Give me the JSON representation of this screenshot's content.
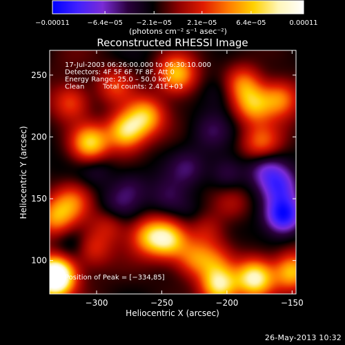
{
  "colors": {
    "background": "#000000",
    "text": "#ffffff"
  },
  "chart_data": {
    "type": "heatmap",
    "title": "Reconstructed RHESSI Image",
    "xlabel": "Heliocentric X (arcsec)",
    "ylabel": "Heliocentric Y (arcsec)",
    "xlim": [
      -336,
      -147
    ],
    "ylim": [
      73,
      270
    ],
    "xticks": [
      -300,
      -250,
      -200,
      -150
    ],
    "yticks": [
      100,
      150,
      200,
      250
    ],
    "xtick_labels": [
      "−300",
      "−250",
      "−200",
      "−150"
    ],
    "ytick_labels": [
      "100",
      "150",
      "200",
      "250"
    ],
    "colorbar": {
      "label": "(photons cm⁻² s⁻¹ asec⁻²)",
      "range": [
        -0.00011,
        0.00011
      ],
      "tick_values": [
        -0.00011,
        -6.4e-05,
        -2.1e-05,
        2.1e-05,
        6.4e-05,
        0.00011
      ],
      "tick_labels": [
        "−0.00011",
        "−6.4e−05",
        "−2.1e−05",
        "2.1e−05",
        "6.4e−05",
        "0.00011"
      ],
      "colormap": [
        "#0000ff",
        "#4020ff",
        "#7a2bd6",
        "#2b003d",
        "#000000",
        "#8c0000",
        "#e01b00",
        "#ff7a00",
        "#ffd100",
        "#fff6b8",
        "#ffffff"
      ]
    },
    "annotations": [
      "17-Jul-2003 06:26:00.000 to 06:30:10.000",
      "Detectors: 4F 5F 6F 7F 8F, Att 0",
      "Energy Range: 25.0 – 50.0 keV",
      "Clean",
      "Total counts: 2.41E+03",
      "Position of Peak = [−334,85]"
    ],
    "peak_position": [
      -334,
      85
    ],
    "hotspots": [
      {
        "x": -320,
        "y": 228,
        "value": 5e-05
      },
      {
        "x": -286,
        "y": 242,
        "value": 4.5e-05
      },
      {
        "x": -239,
        "y": 251,
        "value": 8e-05
      },
      {
        "x": -188,
        "y": 243,
        "value": 6e-05
      },
      {
        "x": -180,
        "y": 226,
        "value": 7e-05
      },
      {
        "x": -174,
        "y": 195,
        "value": 5e-05
      },
      {
        "x": -160,
        "y": 231,
        "value": 6.5e-05
      },
      {
        "x": -305,
        "y": 195,
        "value": 9e-05
      },
      {
        "x": -278,
        "y": 205,
        "value": 9e-05
      },
      {
        "x": -263,
        "y": 217,
        "value": 7.5e-05
      },
      {
        "x": -319,
        "y": 148,
        "value": 5e-05
      },
      {
        "x": -332,
        "y": 135,
        "value": 6e-05
      },
      {
        "x": -290,
        "y": 130,
        "value": 4e-05
      },
      {
        "x": -260,
        "y": 120,
        "value": 6.5e-05
      },
      {
        "x": -245,
        "y": 117,
        "value": 8.5e-05
      },
      {
        "x": -226,
        "y": 102,
        "value": 5.5e-05
      },
      {
        "x": -216,
        "y": 125,
        "value": 3e-05
      },
      {
        "x": -210,
        "y": 99,
        "value": 4e-05
      },
      {
        "x": -330,
        "y": 90,
        "value": 8e-05
      },
      {
        "x": -334,
        "y": 85,
        "value": 0.00011
      },
      {
        "x": -304,
        "y": 110,
        "value": 4.5e-05
      },
      {
        "x": -206,
        "y": 80,
        "value": 0.0001
      },
      {
        "x": -179,
        "y": 86,
        "value": 0.000105
      },
      {
        "x": -150,
        "y": 91,
        "value": 8e-05
      },
      {
        "x": -197,
        "y": 146,
        "value": 3e-05
      },
      {
        "x": -157,
        "y": 137,
        "value": -9e-05
      },
      {
        "x": -230,
        "y": 175,
        "value": -2.5e-05
      },
      {
        "x": -275,
        "y": 160,
        "value": -2.5e-05
      },
      {
        "x": -245,
        "y": 150,
        "value": -2.5e-05
      },
      {
        "x": -200,
        "y": 170,
        "value": -3.5e-05
      },
      {
        "x": -160,
        "y": 160,
        "value": -5e-05
      },
      {
        "x": -300,
        "y": 175,
        "value": -2.5e-05
      },
      {
        "x": -212,
        "y": 205,
        "value": -2e-05
      },
      {
        "x": -318,
        "y": 115,
        "value": -2e-05
      },
      {
        "x": -286,
        "y": 143,
        "value": -2.5e-05
      },
      {
        "x": -230,
        "y": 138,
        "value": -2e-05
      },
      {
        "x": -206,
        "y": 237,
        "value": -2e-05
      },
      {
        "x": -171,
        "y": 175,
        "value": -4e-05
      }
    ]
  },
  "footer": {
    "timestamp": "26-May-2013 10:32"
  }
}
